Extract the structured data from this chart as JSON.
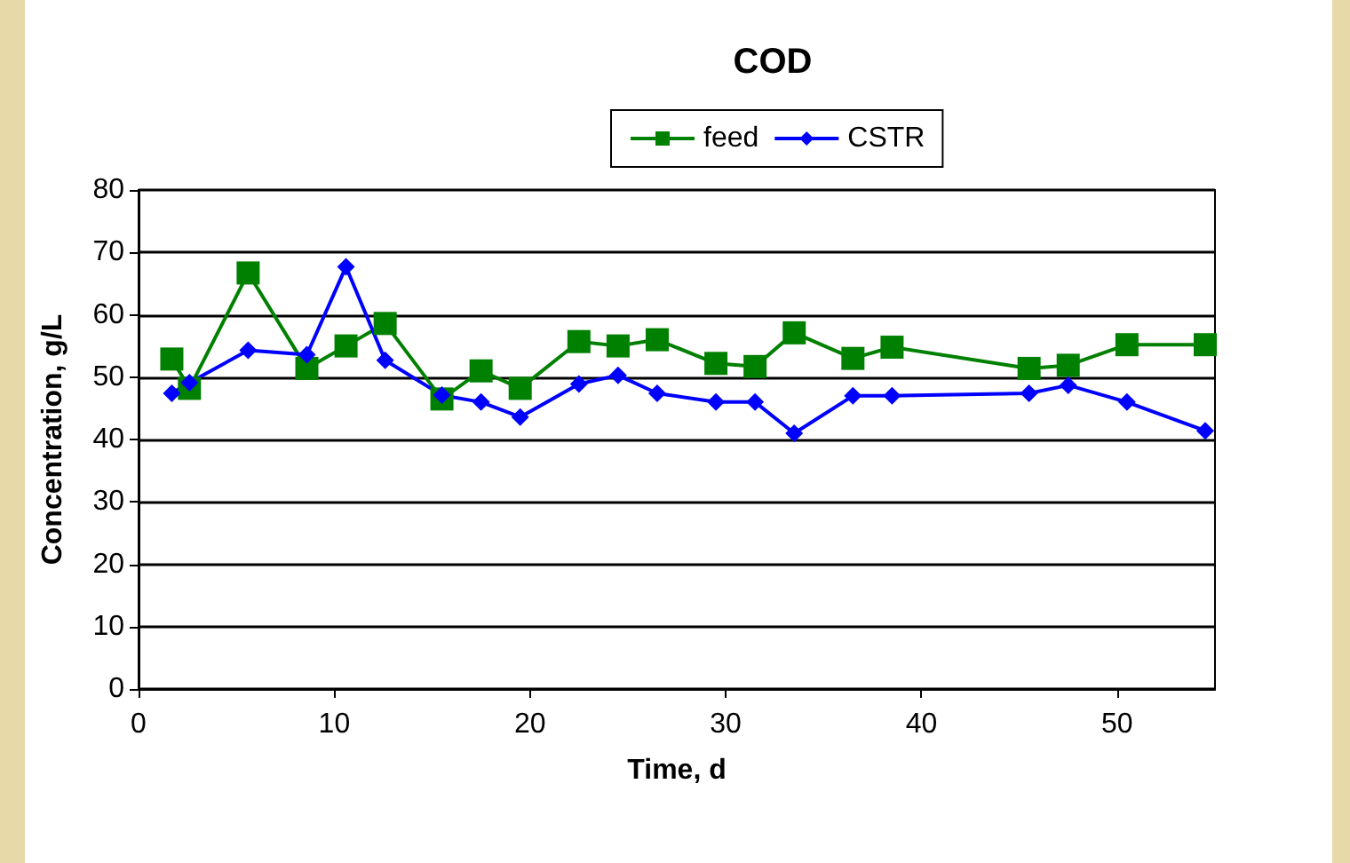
{
  "chart_data": {
    "type": "line",
    "title": "COD",
    "xlabel": "Time, d",
    "ylabel": "Concentration, g/L",
    "x": [
      1.7,
      2.6,
      5.6,
      8.6,
      10.6,
      12.6,
      15.5,
      17.5,
      19.5,
      22.5,
      24.5,
      26.5,
      29.5,
      31.5,
      33.5,
      36.5,
      38.5,
      45.5,
      47.5,
      50.5,
      54.5
    ],
    "series": [
      {
        "name": "feed",
        "color": "#008000",
        "marker": "square",
        "values": [
          52.9,
          48.2,
          66.7,
          51.4,
          55.0,
          58.6,
          46.5,
          51.0,
          48.2,
          55.7,
          55.0,
          56.0,
          52.2,
          51.7,
          57.1,
          53.0,
          54.8,
          51.4,
          51.9,
          55.2,
          55.2
        ]
      },
      {
        "name": "CSTR",
        "color": "#0000ff",
        "marker": "diamond",
        "values": [
          47.4,
          49.1,
          54.3,
          53.6,
          67.7,
          52.7,
          47.1,
          46.0,
          43.6,
          48.9,
          50.3,
          47.4,
          46.0,
          46.0,
          41.0,
          47.0,
          47.0,
          47.4,
          48.7,
          46.0,
          41.4
        ]
      }
    ],
    "xlim": [
      0,
      55
    ],
    "xticks": [
      0,
      10,
      20,
      30,
      40,
      50
    ],
    "ylim": [
      0,
      80
    ],
    "yticks": [
      0,
      10,
      20,
      30,
      40,
      50,
      60,
      70,
      80
    ],
    "grid": "y",
    "legend": "top"
  }
}
